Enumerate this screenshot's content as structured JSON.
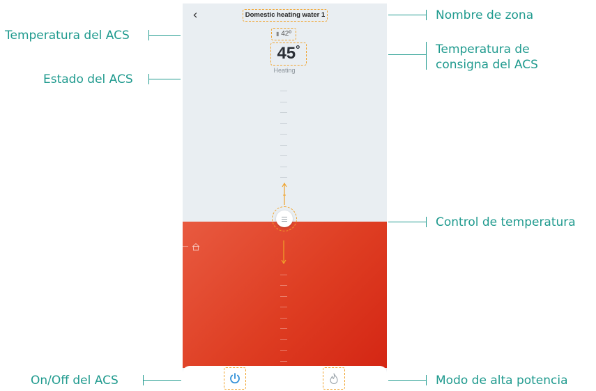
{
  "callouts": {
    "acs_temperature": "Temperatura del ACS",
    "acs_status": "Estado del ACS",
    "acs_onoff": "On/Off del ACS",
    "zone_name": "Nombre de zona",
    "setpoint_line1": "Temperatura de",
    "setpoint_line2": "consigna del ACS",
    "temperature_control": "Control de temperatura",
    "high_power_mode": "Modo de alta potencia"
  },
  "app": {
    "back_icon": "chevron-left-icon",
    "zone_name": "Domestic heating water 1",
    "current_temperature": "42º",
    "setpoint_temperature": "45",
    "setpoint_unit": "°",
    "status": "Heating",
    "bottom_bar": {
      "power_icon": "power-icon",
      "high_power_icon": "flame-icon"
    }
  },
  "colors": {
    "callout": "#1f9a8e",
    "highlight": "#f0a22a",
    "heating": "#e04a2c",
    "power_active": "#2f8fd8",
    "screen_bg": "#e9eef2"
  }
}
